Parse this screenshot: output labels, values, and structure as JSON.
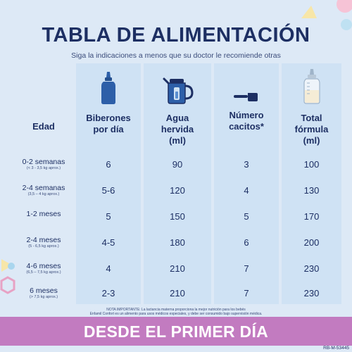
{
  "title": "TABLA DE ALIMENTACIÓN",
  "subtitle": "Siga la indicaciones a menos que su doctor le recomiende otras",
  "headers": {
    "age": "Edad",
    "bottles_line1": "Biberones",
    "bottles_line2": "por día",
    "water_line1": "Agua",
    "water_line2": "hervida",
    "water_line3": "(ml)",
    "scoops_line1": "Número",
    "scoops_line2": "cacitos*",
    "total_line1": "Total",
    "total_line2": "fórmula",
    "total_line3": "(ml)"
  },
  "rows": [
    {
      "age": "0-2 semanas",
      "note": "(< 3 - 3,5 kg aprox.)",
      "bottles": "6",
      "water": "90",
      "scoops": "3",
      "total": "100"
    },
    {
      "age": "2-4 semanas",
      "note": "(3,5 – 4 kg aprox.)",
      "bottles": "5-6",
      "water": "120",
      "scoops": "4",
      "total": "130"
    },
    {
      "age": "1-2 meses",
      "note": "",
      "bottles": "5",
      "water": "150",
      "scoops": "5",
      "total": "170"
    },
    {
      "age": "2-4 meses",
      "note": "(5 - 6,5 kg aprox.)",
      "bottles": "4-5",
      "water": "180",
      "scoops": "6",
      "total": "200"
    },
    {
      "age": "4-6 meses",
      "note": "(6,5 – 7,5 kg aprox.)",
      "bottles": "4",
      "water": "210",
      "scoops": "7",
      "total": "230"
    },
    {
      "age": "6 meses",
      "note": "(> 7,5 kg aprox.)",
      "bottles": "2-3",
      "water": "210",
      "scoops": "7",
      "total": "230"
    }
  ],
  "footnote_line1": "NOTA IMPORTANTE: La lactancia materna proporciona la mejor nutrición para los bebés",
  "footnote_line2": "Enfamil Confort es un alimento para usos médicos especiales, y debe ser consumido bajo supervisión médica.",
  "banner": "DESDE EL PRIMER DÍA",
  "code": "RB-M-53445",
  "colors": {
    "navy": "#1d2f63",
    "column_bg": "#cfe2f4",
    "page_bg": "#dde9f6",
    "banner": "#c27bc0",
    "bottle_blue": "#2d5fa8"
  },
  "icons": [
    "baby-bottle-icon",
    "kettle-icon",
    "measuring-scoop-icon",
    "graduated-bottle-icon"
  ]
}
